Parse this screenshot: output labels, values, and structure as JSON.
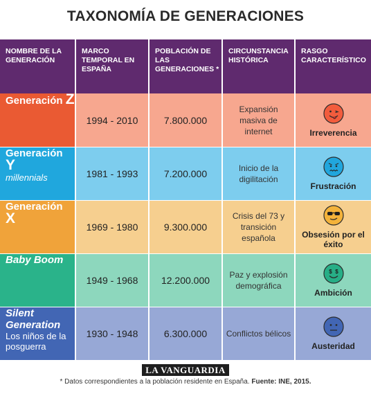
{
  "title": "TAXONOMÍA DE GENERACIONES",
  "headers": {
    "name": "NOMBRE DE LA GENERACIÓN",
    "period": "MARCO TEMPORAL EN ESPAÑA",
    "population": "POBLACIÓN DE LAS GENERACIONES *",
    "circumstance": "CIRCUNSTANCIA HISTÓRICA",
    "trait": "RASGO CARACTERÍSTICO"
  },
  "rows": [
    {
      "name": "Generación",
      "letter": "Z",
      "sub": "",
      "period": "1994 - 2010",
      "population": "7.800.000",
      "circumstance": "Expansión masiva de internet",
      "trait": "Irreverencia",
      "face": "tongue-face-icon",
      "colors": {
        "gen": "#ea5a33",
        "cell": "#f7a78f",
        "face": "#f25c3d"
      }
    },
    {
      "name": "Generación",
      "letter": "Y",
      "sub": "millennials",
      "period": "1981 - 1993",
      "population": "7.200.000",
      "circumstance": "Inicio de la digilitación",
      "trait": "Frustración",
      "face": "frustrated-face-icon",
      "colors": {
        "gen": "#20a7dd",
        "cell": "#7dcdee",
        "face": "#21a6dd"
      }
    },
    {
      "name": "Generación",
      "letter": "X",
      "sub": "",
      "period": "1969 - 1980",
      "population": "9.300.000",
      "circumstance": "Crisis del 73 y transición española",
      "trait": "Obsesión por el éxito",
      "face": "sunglasses-face-icon",
      "colors": {
        "gen": "#f0a33a",
        "cell": "#f6cf8f",
        "face": "#f3b23a"
      }
    },
    {
      "name": "Baby Boom",
      "letter": "",
      "sub": "",
      "period": "1949 - 1968",
      "population": "12.200.000",
      "circumstance": "Paz y explosión demográfica",
      "trait": "Ambición",
      "face": "money-face-icon",
      "colors": {
        "gen": "#2ab38a",
        "cell": "#8dd7bd",
        "face": "#27ae86"
      }
    },
    {
      "name": "Silent Generation",
      "letter": "",
      "sub": "Los niños de la posguerra",
      "period": "1930 - 1948",
      "population": "6.300.000",
      "circumstance": "Conflictos bélicos",
      "trait": "Austeridad",
      "face": "neutral-face-icon",
      "colors": {
        "gen": "#4266b4",
        "cell": "#97a8d6",
        "face": "#4266b4"
      }
    }
  ],
  "logo": "LA VANGUARDIA",
  "note_text": "* Datos correspondientes a la población residente en España.",
  "note_source": "Fuente: INE, 2015."
}
